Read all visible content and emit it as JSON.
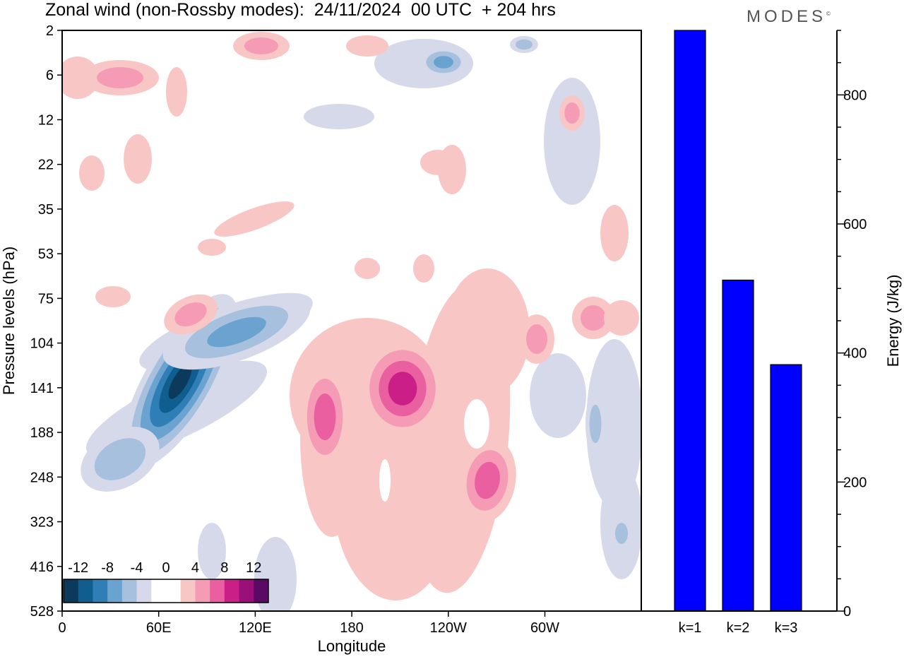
{
  "title": "Zonal wind (non-Rossby modes):  24/11/2024  00 UTC  + 204 hrs",
  "brand": "MODES",
  "brand_mark": "©",
  "chart_data": [
    {
      "type": "heatmap",
      "xlabel": "Longitude",
      "ylabel": "Pressure levels (hPa)",
      "x_ticks": [
        "0",
        "60E",
        "120E",
        "180",
        "120W",
        "60W"
      ],
      "y_ticks": [
        "2",
        "6",
        "12",
        "22",
        "35",
        "53",
        "75",
        "104",
        "141",
        "188",
        "248",
        "323",
        "416",
        "528"
      ],
      "colorbar": {
        "labels": [
          "-12",
          "-8",
          "-4",
          "0",
          "4",
          "8",
          "12"
        ],
        "colors": [
          "#0b3a5c",
          "#0f5e8f",
          "#2f7fb6",
          "#6aa3cf",
          "#a7c0dd",
          "#d5d9ea",
          "#ffffff",
          "#ffffff",
          "#f9c6c6",
          "#f59bb5",
          "#ea5f9f",
          "#c91f86",
          "#9a0f78",
          "#5a0a64"
        ]
      },
      "features": [
        {
          "name": "negative jet core",
          "lon": 68,
          "level": 141,
          "value": -14
        },
        {
          "name": "positive core",
          "lon": 197,
          "level": 120,
          "value": 8
        },
        {
          "name": "positive core",
          "lon": 163,
          "level": 188,
          "value": 8
        },
        {
          "name": "positive core",
          "lon": 242,
          "level": 248,
          "value": 8
        }
      ]
    },
    {
      "type": "bar",
      "categories": [
        "k=1",
        "k=2",
        "k=3"
      ],
      "values": [
        900,
        513,
        382
      ],
      "ylabel": "Energy (J/kg)",
      "ylim": [
        0,
        900
      ],
      "y_ticks": [
        "0",
        "200",
        "400",
        "600",
        "800"
      ],
      "bar_color": "#0000ff"
    }
  ]
}
